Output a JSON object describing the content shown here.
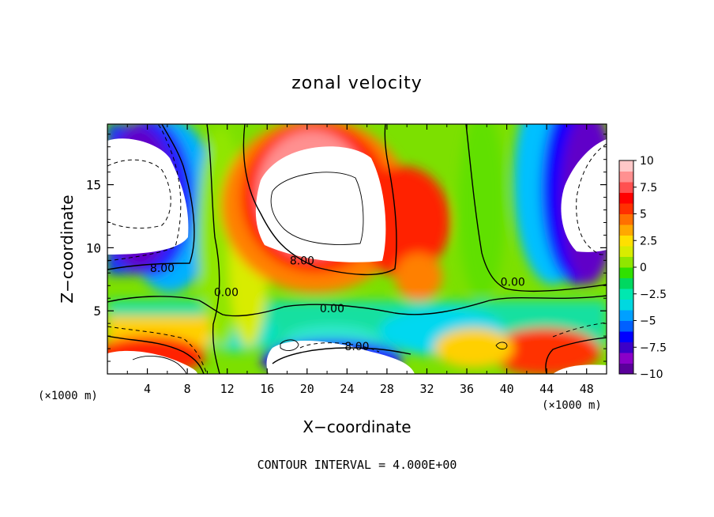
{
  "chart_data": {
    "type": "heatmap",
    "title": "zonal velocity",
    "xlabel": "X−coordinate",
    "ylabel": "Z−coordinate",
    "x_unit_label": "(×1000 m)",
    "xlim": [
      0,
      50
    ],
    "ylim": [
      0,
      19.8
    ],
    "x_ticks": [
      4,
      8,
      12,
      16,
      20,
      24,
      28,
      32,
      36,
      40,
      44,
      48
    ],
    "x_tick_labels": [
      "4",
      "8",
      "12",
      "16",
      "20",
      "24",
      "28",
      "32",
      "36",
      "40",
      "44",
      "48"
    ],
    "y_ticks": [
      5,
      10,
      15
    ],
    "y_tick_labels": [
      "5",
      "10",
      "15"
    ],
    "colorbar": {
      "range": [
        -10,
        10
      ],
      "ticks": [
        10,
        7.5,
        5,
        2.5,
        0,
        -2.5,
        -5,
        -7.5,
        -10
      ],
      "tick_labels": [
        "10",
        "7.5",
        "5",
        "2.5",
        "0",
        "−2.5",
        "−5",
        "−7.5",
        "−10"
      ],
      "colors": [
        "#5a009a",
        "#8a00c8",
        "#3c00c8",
        "#0000ff",
        "#0060ff",
        "#00a0ff",
        "#00d8e0",
        "#00e8b0",
        "#00d860",
        "#30e000",
        "#90e600",
        "#d8ec00",
        "#ffe000",
        "#ffa800",
        "#ff7000",
        "#ff3000",
        "#ff0000",
        "#ff5050",
        "#ff9090",
        "#ffc8c8"
      ]
    },
    "contour_labels": [
      {
        "text": "8.00",
        "x": 5.5,
        "z": 8.4
      },
      {
        "text": "0.00",
        "x": 11.9,
        "z": 6.5
      },
      {
        "text": "8.00",
        "x": 19.5,
        "z": 9.0
      },
      {
        "text": "0.00",
        "x": 22.5,
        "z": 5.2
      },
      {
        "text": "8.00",
        "x": 25.0,
        "z": 2.2
      },
      {
        "text": "0.00",
        "x": 40.6,
        "z": 7.3
      }
    ],
    "footnote": "CONTOUR INTERVAL = 4.000E+00",
    "grid": false,
    "legend": "right"
  }
}
